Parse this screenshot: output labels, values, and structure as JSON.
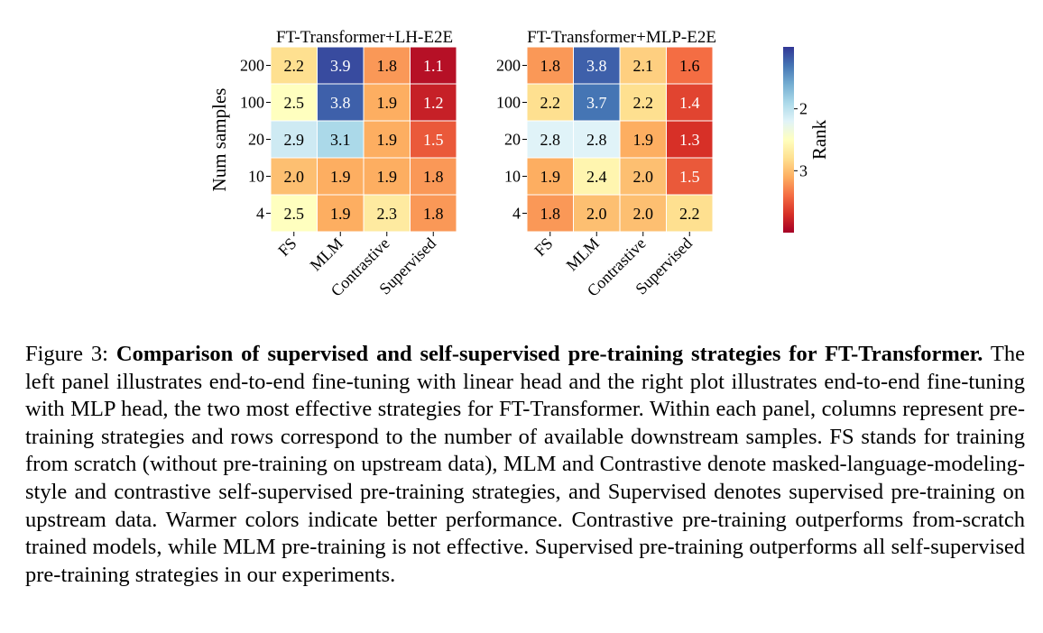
{
  "chart_data": [
    {
      "type": "heatmap",
      "title": "FT-Transformer+LH-E2E",
      "ylabel": "Num samples",
      "rows": [
        "200",
        "100",
        "20",
        "10",
        "4"
      ],
      "columns": [
        "FS",
        "MLM",
        "Contrastive",
        "Supervised"
      ],
      "values": [
        [
          2.2,
          3.9,
          1.8,
          1.1
        ],
        [
          2.5,
          3.8,
          1.9,
          1.2
        ],
        [
          2.9,
          3.1,
          1.9,
          1.5
        ],
        [
          2.0,
          1.9,
          1.9,
          1.8
        ],
        [
          2.5,
          1.9,
          2.3,
          1.8
        ]
      ]
    },
    {
      "type": "heatmap",
      "title": "FT-Transformer+MLP-E2E",
      "rows": [
        "200",
        "100",
        "20",
        "10",
        "4"
      ],
      "columns": [
        "FS",
        "MLM",
        "Contrastive",
        "Supervised"
      ],
      "values": [
        [
          1.8,
          3.8,
          2.1,
          1.6
        ],
        [
          2.2,
          3.7,
          2.2,
          1.4
        ],
        [
          2.8,
          2.8,
          1.9,
          1.3
        ],
        [
          1.9,
          2.4,
          2.0,
          1.5
        ],
        [
          1.8,
          2.0,
          2.0,
          2.2
        ]
      ]
    }
  ],
  "colorbar": {
    "label": "Rank",
    "ticks": [
      "2",
      "3"
    ],
    "range": [
      1.0,
      4.0
    ],
    "colormap": "RdYlBu",
    "colormap_reversed": true
  },
  "caption": {
    "prefix": "Figure 3: ",
    "bold": "Comparison of supervised and self-supervised pre-training strategies for FT-Transformer.",
    "text": " The left panel illustrates end-to-end fine-tuning with linear head and the right plot illustrates end-to-end fine-tuning with MLP head, the two most effective strategies for FT-Transformer. Within each panel, columns represent pre-training strategies and rows correspond to the number of available downstream samples. FS stands for training from scratch (without pre-training on upstream data), MLM and Contrastive denote masked-language-modeling-style and contrastive self-supervised pre-training strategies, and Supervised denotes supervised pre-training on upstream data. Warmer colors indicate better performance. Contrastive pre-training outperforms from-scratch trained models, while MLM pre-training is not effective. Supervised pre-training outperforms all self-supervised pre-training strategies in our experiments."
  }
}
